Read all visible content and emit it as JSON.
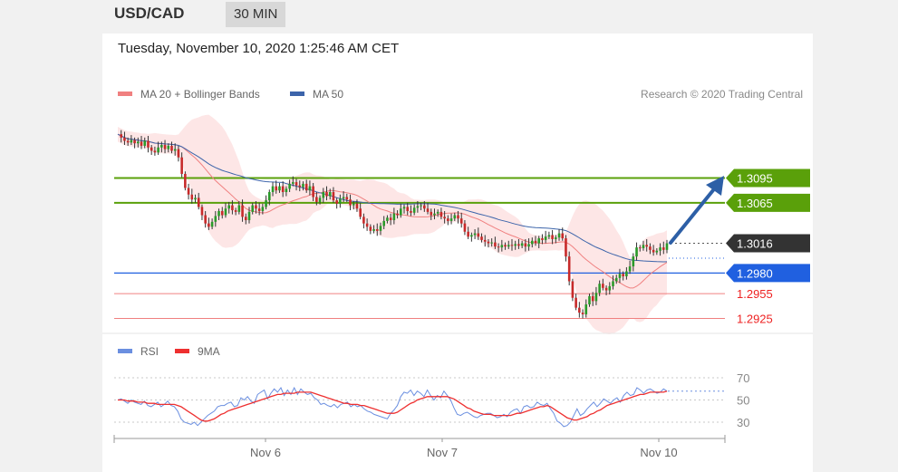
{
  "header": {
    "pair": "USD/CAD",
    "timeframe": "30 MIN"
  },
  "timestamp": "Tuesday, November 10, 2020 1:25:46 AM CET",
  "legend": {
    "ma20": "MA 20 + Bollinger Bands",
    "ma50": "MA 50",
    "credit": "Research © 2020 Trading Central"
  },
  "rsi_legend": {
    "rsi": "RSI",
    "ma9": "9MA"
  },
  "colors": {
    "ma20": "#f08080",
    "bands": "#fde3e3",
    "ma50": "#3c64aa",
    "green_level": "#5aa00a",
    "blue_level": "#2060e0",
    "red_level": "#f08080",
    "current": "#333333",
    "arrow": "#2d5fa6",
    "rsi": "#6b8fe0",
    "rsi_ma": "#ee3030"
  },
  "chart_data": [
    {
      "type": "candlestick",
      "instrument": "USD/CAD",
      "timeframe": "30 MIN",
      "x_tick_labels": [
        "Nov 6",
        "Nov 7",
        "Nov 10"
      ],
      "price_levels": [
        {
          "value": 1.3095,
          "label": "1.3095",
          "kind": "resistance"
        },
        {
          "value": 1.3065,
          "label": "1.3065",
          "kind": "resistance"
        },
        {
          "value": 1.3016,
          "label": "1.3016",
          "kind": "current"
        },
        {
          "value": 1.298,
          "label": "1.2980",
          "kind": "pivot"
        },
        {
          "value": 1.2955,
          "label": "1.2955",
          "kind": "support"
        },
        {
          "value": 1.2925,
          "label": "1.2925",
          "kind": "support"
        }
      ],
      "ylim": [
        1.292,
        1.317
      ],
      "close": [
        1.3148,
        1.3144,
        1.314,
        1.3138,
        1.3141,
        1.3137,
        1.3139,
        1.3134,
        1.314,
        1.3132,
        1.3128,
        1.3126,
        1.3132,
        1.3135,
        1.313,
        1.3134,
        1.3128,
        1.313,
        1.312,
        1.31,
        1.3083,
        1.3075,
        1.3069,
        1.3071,
        1.306,
        1.305,
        1.304,
        1.3036,
        1.3042,
        1.3049,
        1.3055,
        1.305,
        1.3058,
        1.3062,
        1.3056,
        1.3054,
        1.3062,
        1.3048,
        1.3044,
        1.3054,
        1.3062,
        1.3058,
        1.3055,
        1.306,
        1.3068,
        1.3078,
        1.3085,
        1.308,
        1.3085,
        1.3078,
        1.3082,
        1.3088,
        1.309,
        1.3086,
        1.3084,
        1.3088,
        1.308,
        1.3085,
        1.3072,
        1.3066,
        1.3071,
        1.3078,
        1.3073,
        1.3078,
        1.3068,
        1.3064,
        1.307,
        1.3072,
        1.3069,
        1.3062,
        1.3064,
        1.3058,
        1.3048,
        1.304,
        1.3036,
        1.3031,
        1.3033,
        1.3031,
        1.3037,
        1.3043,
        1.3047,
        1.3044,
        1.3052,
        1.305,
        1.3058,
        1.306,
        1.3055,
        1.3053,
        1.3059,
        1.3061,
        1.3062,
        1.3058,
        1.3054,
        1.305,
        1.3052,
        1.3054,
        1.3048,
        1.3046,
        1.3043,
        1.3046,
        1.305,
        1.3046,
        1.304,
        1.303,
        1.3024,
        1.3026,
        1.3028,
        1.3024,
        1.302,
        1.3018,
        1.3016,
        1.3017,
        1.3012,
        1.3011,
        1.3014,
        1.3012,
        1.3014,
        1.3013,
        1.3015,
        1.3013,
        1.3016,
        1.3012,
        1.3015,
        1.3019,
        1.3016,
        1.3022,
        1.302,
        1.3024,
        1.3026,
        1.3021,
        1.3023,
        1.3028,
        1.3022,
        1.3,
        1.297,
        1.295,
        1.2938,
        1.2932,
        1.293,
        1.2942,
        1.2952,
        1.2946,
        1.2956,
        1.2967,
        1.2962,
        1.2959,
        1.2964,
        1.297,
        1.2974,
        1.2979,
        1.2976,
        1.2982,
        1.2988,
        1.3,
        1.3011,
        1.301,
        1.3014,
        1.3012,
        1.3008,
        1.3005,
        1.3007,
        1.3011,
        1.3008,
        1.3016
      ]
    },
    {
      "type": "line",
      "title": "RSI",
      "series": [
        {
          "name": "RSI"
        },
        {
          "name": "9MA"
        }
      ],
      "y_levels": [
        70,
        50,
        30
      ],
      "ylim": [
        20,
        80
      ],
      "rsi": [
        50,
        51,
        49,
        47,
        50,
        48,
        47,
        46,
        49,
        45,
        44,
        46,
        48,
        44,
        46,
        49,
        45,
        44,
        40,
        33,
        30,
        29,
        28,
        30,
        27,
        30,
        33,
        36,
        38,
        40,
        44,
        45,
        45,
        47,
        48,
        44,
        45,
        52,
        50,
        53,
        49,
        47,
        55,
        57,
        59,
        51,
        56,
        60,
        57,
        61,
        54,
        59,
        55,
        61,
        55,
        60,
        57,
        55,
        56,
        52,
        50,
        46,
        47,
        45,
        44,
        46,
        43,
        46,
        47,
        48,
        44,
        46,
        44,
        45,
        42,
        40,
        39,
        37,
        36,
        35,
        34,
        33,
        38,
        41,
        45,
        53,
        57,
        56,
        59,
        54,
        58,
        56,
        53,
        59,
        54,
        50,
        54,
        52,
        58,
        54,
        50,
        43,
        37,
        36,
        38,
        39,
        37,
        35,
        34,
        36,
        37,
        38,
        38,
        36,
        34,
        35,
        37,
        35,
        39,
        41,
        42,
        38,
        44,
        45,
        43,
        44,
        48,
        46,
        45,
        47,
        42,
        38,
        31,
        29,
        26,
        27,
        30,
        36,
        42,
        36,
        38,
        42,
        45,
        48,
        44,
        47,
        51,
        49,
        47,
        50,
        52,
        48,
        54,
        57,
        54,
        55,
        61,
        59,
        56,
        59,
        60,
        58,
        56,
        57,
        60,
        58
      ],
      "rsi_ma": [
        50,
        50,
        50,
        49,
        49,
        49,
        48,
        48,
        48,
        47,
        47,
        47,
        46,
        46,
        46,
        46,
        46,
        46,
        45,
        44,
        42,
        40,
        38,
        36,
        34,
        32,
        31,
        31,
        32,
        33,
        35,
        37,
        38,
        40,
        41,
        42,
        43,
        44,
        45,
        46,
        47,
        48,
        49,
        50,
        51,
        52,
        53,
        54,
        55,
        55,
        56,
        56,
        56,
        56,
        57,
        57,
        57,
        57,
        57,
        56,
        55,
        54,
        53,
        52,
        51,
        50,
        49,
        48,
        47,
        47,
        46,
        46,
        46,
        45,
        45,
        44,
        43,
        42,
        41,
        40,
        39,
        38,
        38,
        38,
        39,
        41,
        43,
        45,
        47,
        48,
        50,
        51,
        52,
        53,
        53,
        53,
        53,
        53,
        53,
        53,
        52,
        51,
        49,
        47,
        45,
        43,
        42,
        40,
        39,
        38,
        37,
        37,
        37,
        36,
        36,
        36,
        36,
        36,
        36,
        37,
        38,
        38,
        39,
        40,
        41,
        42,
        43,
        44,
        44,
        45,
        44,
        42,
        40,
        38,
        36,
        34,
        33,
        32,
        32,
        33,
        34,
        35,
        37,
        38,
        40,
        41,
        43,
        45,
        46,
        47,
        48,
        49,
        50,
        51,
        52,
        53,
        54,
        55,
        55,
        56,
        57,
        57,
        57,
        57,
        57,
        58
      ]
    }
  ]
}
